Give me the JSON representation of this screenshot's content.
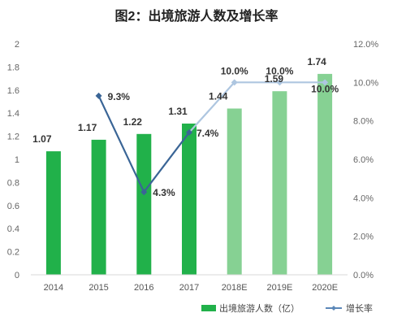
{
  "chart_data": {
    "type": "bar",
    "title": "图2：出境旅游人数及增长率",
    "categories": [
      "2014",
      "2015",
      "2016",
      "2017",
      "2018E",
      "2019E",
      "2020E"
    ],
    "series": [
      {
        "name": "出境旅游人数（亿）",
        "type": "bar",
        "axis": "left",
        "values": [
          1.07,
          1.17,
          1.22,
          1.31,
          1.44,
          1.59,
          1.74
        ],
        "labels": [
          "1.07",
          "1.17",
          "1.22",
          "1.31",
          "1.44",
          "1.59",
          "1.74"
        ],
        "colors": [
          "#21b14a",
          "#21b14a",
          "#21b14a",
          "#21b14a",
          "#86d193",
          "#86d193",
          "#86d193"
        ]
      },
      {
        "name": "增长率",
        "type": "line",
        "axis": "right",
        "values": [
          null,
          9.3,
          4.3,
          7.4,
          10.0,
          10.0,
          10.0
        ],
        "labels": [
          "",
          "9.3%",
          "4.3%",
          "7.4%",
          "10.0%",
          "10.0%",
          "10.0%"
        ],
        "colors": [
          "#3a6596",
          "#3a6596",
          "#3a6596",
          "#3a6596",
          "#aec6e0",
          "#aec6e0",
          "#aec6e0"
        ]
      }
    ],
    "y_left": {
      "ylim": [
        0,
        2
      ],
      "ticks": [
        "0",
        "0.2",
        "0.4",
        "0.6",
        "0.8",
        "1",
        "1.2",
        "1.4",
        "1.6",
        "1.8",
        "2"
      ]
    },
    "y_right": {
      "ylim": [
        0,
        12
      ],
      "ticks": [
        "0.0%",
        "2.0%",
        "4.0%",
        "6.0%",
        "8.0%",
        "10.0%",
        "12.0%"
      ]
    },
    "grid": false,
    "legend_position": "bottom-right"
  }
}
